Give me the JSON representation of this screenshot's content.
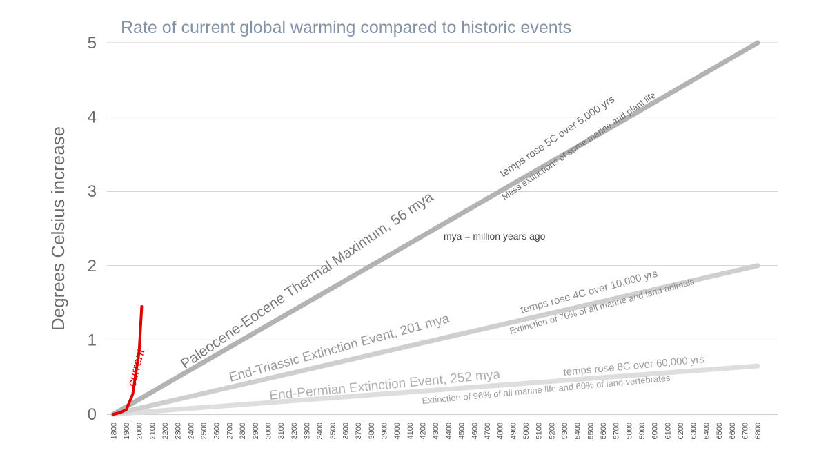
{
  "chart_data": {
    "type": "line",
    "title": "Rate of current global warming compared to historic events",
    "xlabel": "",
    "ylabel": "Degrees Celsius increase",
    "xlim": [
      1750,
      6960
    ],
    "ylim": [
      0,
      5
    ],
    "yticks": [
      0,
      1,
      2,
      3,
      4,
      5
    ],
    "xtick_start": 1800,
    "xtick_end": 6800,
    "xtick_step": 100,
    "grid": "horizontal",
    "colors": {
      "current": "#e00000",
      "petm": "#b3b3b3",
      "triassic": "#cfcfcf",
      "permian": "#dedede",
      "grid": "#c8c8c8",
      "axis": "#bfbfbf"
    },
    "series": [
      {
        "id": "current",
        "name": "current",
        "x": [
          1800,
          1850,
          1900,
          1950,
          2000,
          2020
        ],
        "y": [
          0.0,
          0.02,
          0.06,
          0.27,
          0.85,
          1.45
        ]
      },
      {
        "id": "petm",
        "x": [
          1800,
          6800
        ],
        "y": [
          0,
          5
        ]
      },
      {
        "id": "triassic",
        "x": [
          1800,
          6800
        ],
        "y": [
          0,
          2
        ]
      },
      {
        "id": "permian",
        "x": [
          1800,
          6800
        ],
        "y": [
          0,
          0.65
        ]
      }
    ],
    "annotations": {
      "petm_name": "Paleocene-Eocene Thermal Maximum, 56 mya",
      "petm_rate": "temps rose 5C over 5,000 yrs",
      "petm_effect": "Mass extinctions of some marine and plant life",
      "triassic_name": "End-Triassic Extinction Event, 201 mya",
      "triassic_rate": "temps rose 4C over 10,000 yrs",
      "triassic_effect": "Extinction of 76% of all marine and land animals",
      "permian_name": "End-Permian Extinction Event, 252 mya",
      "permian_rate": "temps rose 8C over 60,000 yrs",
      "permian_effect": "Extinction of 96% of all marine life and 60% of land vertebrates",
      "note": "mya = million years ago"
    }
  }
}
